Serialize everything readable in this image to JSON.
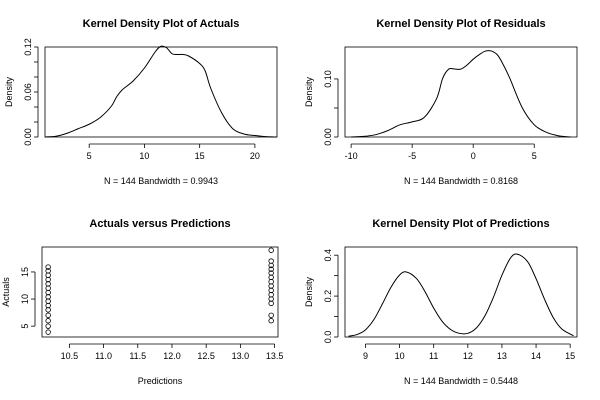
{
  "chart_data": [
    {
      "id": "actuals",
      "type": "line",
      "title": "Kernel Density Plot of Actuals",
      "xlabel": "N = 144   Bandwidth = 0.9943",
      "ylabel": "Density",
      "xlim": [
        1.0,
        22.0
      ],
      "ylim": [
        0,
        0.12
      ],
      "x_ticks": [
        5,
        10,
        15,
        20
      ],
      "x_tick_labels": [
        "5",
        "10",
        "15",
        "20"
      ],
      "y_ticks": [
        0,
        0.02,
        0.04,
        0.06,
        0.08,
        0.1,
        0.12
      ],
      "y_tick_labels": [
        "0.00",
        "",
        "",
        "0.06",
        "",
        "",
        "0.12"
      ],
      "x": [
        1,
        2,
        3,
        4,
        5,
        6,
        7,
        7.5,
        8,
        9,
        10,
        11,
        11.5,
        12,
        12.5,
        13,
        13.5,
        14,
        15,
        15.5,
        16,
        17,
        18,
        19,
        20,
        21,
        22
      ],
      "values": [
        0,
        0.001,
        0.005,
        0.011,
        0.017,
        0.026,
        0.041,
        0.054,
        0.063,
        0.075,
        0.092,
        0.114,
        0.121,
        0.119,
        0.111,
        0.11,
        0.11,
        0.108,
        0.098,
        0.088,
        0.065,
        0.032,
        0.011,
        0.004,
        0.002,
        0.0005,
        0
      ]
    },
    {
      "id": "residuals",
      "type": "line",
      "title": "Kernel Density Plot of Residuals",
      "xlabel": "N = 144   Bandwidth = 0.8168",
      "ylabel": "Density",
      "xlim": [
        -10.5,
        8.5
      ],
      "ylim": [
        0,
        0.155
      ],
      "x_ticks": [
        -10,
        -5,
        0,
        5
      ],
      "x_tick_labels": [
        "-10",
        "-5",
        "0",
        "5"
      ],
      "y_ticks": [
        0,
        0.05,
        0.1
      ],
      "y_tick_labels": [
        "0.00",
        "",
        "0.10"
      ],
      "x": [
        -10,
        -9,
        -8,
        -7,
        -6,
        -5,
        -4,
        -3,
        -2.5,
        -2,
        -1.5,
        -1,
        -0.5,
        0,
        0.5,
        1,
        1.5,
        2,
        2.5,
        3,
        4,
        5,
        6,
        7,
        8
      ],
      "values": [
        0,
        0.001,
        0.004,
        0.011,
        0.021,
        0.026,
        0.034,
        0.066,
        0.101,
        0.117,
        0.117,
        0.117,
        0.124,
        0.134,
        0.142,
        0.148,
        0.148,
        0.141,
        0.123,
        0.101,
        0.051,
        0.021,
        0.008,
        0.002,
        0
      ]
    },
    {
      "id": "actuals_vs_predictions",
      "type": "scatter",
      "title": "Actuals versus Predictions",
      "xlabel": "Predictions",
      "ylabel": "Actuals",
      "xlim": [
        10.1,
        13.55
      ],
      "ylim": [
        3.0,
        19.6
      ],
      "x_ticks": [
        10.5,
        11.0,
        11.5,
        12.0,
        12.5,
        13.0,
        13.5
      ],
      "x_tick_labels": [
        "10.5",
        "11.0",
        "11.5",
        "12.0",
        "12.5",
        "13.0",
        "13.5"
      ],
      "y_ticks": [
        5,
        10,
        15
      ],
      "y_tick_labels": [
        "5",
        "10",
        "15"
      ],
      "points": [
        [
          10.19,
          3.9
        ],
        [
          10.19,
          5.0
        ],
        [
          10.19,
          6.0
        ],
        [
          10.19,
          7.0
        ],
        [
          10.19,
          8.0
        ],
        [
          10.19,
          8.8
        ],
        [
          10.19,
          9.6
        ],
        [
          10.19,
          10.4
        ],
        [
          10.19,
          11.2
        ],
        [
          10.19,
          12.0
        ],
        [
          10.19,
          12.8
        ],
        [
          10.19,
          13.6
        ],
        [
          10.19,
          14.4
        ],
        [
          10.19,
          15.2
        ],
        [
          10.19,
          15.9
        ],
        [
          13.45,
          6.0
        ],
        [
          13.45,
          7.0
        ],
        [
          13.45,
          9.2
        ],
        [
          13.45,
          10.0
        ],
        [
          13.45,
          10.8
        ],
        [
          13.45,
          11.6
        ],
        [
          13.45,
          12.4
        ],
        [
          13.45,
          13.2
        ],
        [
          13.45,
          14.0
        ],
        [
          13.45,
          14.8
        ],
        [
          13.45,
          15.5
        ],
        [
          13.45,
          16.2
        ],
        [
          13.45,
          17.0
        ],
        [
          13.45,
          19.0
        ]
      ]
    },
    {
      "id": "predictions",
      "type": "line",
      "title": "Kernel Density Plot of Predictions",
      "xlabel": "N = 144   Bandwidth = 0.5448",
      "ylabel": "Density",
      "xlim": [
        8.4,
        15.2
      ],
      "ylim": [
        0,
        0.44
      ],
      "x_ticks": [
        9,
        10,
        11,
        12,
        13,
        14,
        15
      ],
      "x_tick_labels": [
        "9",
        "10",
        "11",
        "12",
        "13",
        "14",
        "15"
      ],
      "y_ticks": [
        0,
        0.1,
        0.2,
        0.3,
        0.4
      ],
      "y_tick_labels": [
        "0.0",
        "",
        "0.2",
        "",
        "0.4"
      ],
      "x": [
        8.5,
        8.75,
        9.0,
        9.25,
        9.5,
        9.75,
        10.0,
        10.2,
        10.5,
        10.75,
        11.0,
        11.25,
        11.5,
        11.75,
        12.0,
        12.25,
        12.5,
        12.75,
        13.0,
        13.25,
        13.45,
        13.75,
        14.0,
        14.25,
        14.5,
        14.75,
        15.1
      ],
      "values": [
        0.004,
        0.012,
        0.035,
        0.086,
        0.163,
        0.244,
        0.303,
        0.318,
        0.285,
        0.22,
        0.141,
        0.076,
        0.036,
        0.018,
        0.018,
        0.044,
        0.103,
        0.194,
        0.302,
        0.386,
        0.405,
        0.369,
        0.285,
        0.184,
        0.096,
        0.04,
        0.006
      ]
    }
  ]
}
